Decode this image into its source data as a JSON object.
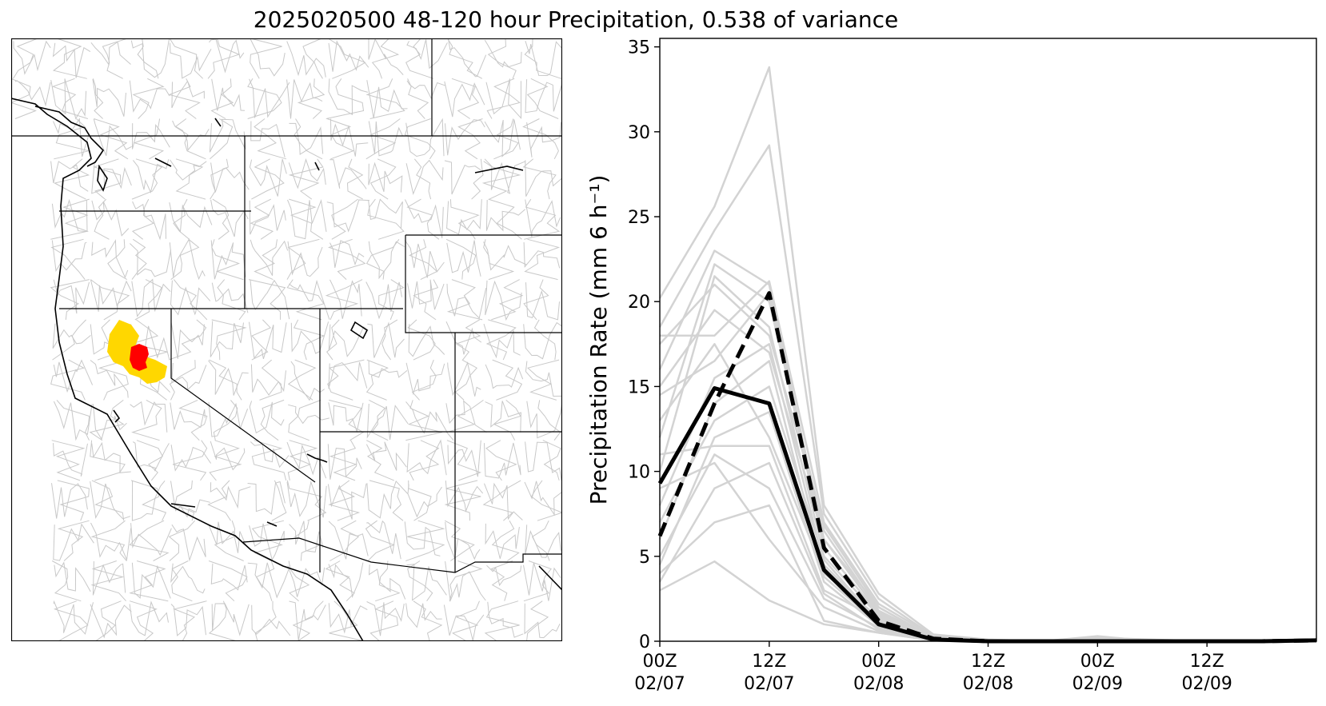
{
  "title": "2025020500 48-120 hour Precipitation, 0.538 of variance",
  "map_panel": {
    "description_colors": {
      "basin_lines": "#c8c8c8",
      "borders": "#000000",
      "highlight_primary": "#ff0000",
      "highlight_secondary": "#ffd700"
    }
  },
  "chart_data": {
    "type": "line",
    "title": "",
    "xlabel": "",
    "ylabel": "Precipitation Rate (mm 6 h⁻¹)",
    "ylim": [
      0,
      35.5
    ],
    "xlim": [
      0,
      72
    ],
    "yticks": [
      0,
      5,
      10,
      15,
      20,
      25,
      30,
      35
    ],
    "xticks": [
      {
        "x": 0,
        "label1": "00Z",
        "label2": "02/07"
      },
      {
        "x": 12,
        "label1": "12Z",
        "label2": "02/07"
      },
      {
        "x": 24,
        "label1": "00Z",
        "label2": "02/08"
      },
      {
        "x": 36,
        "label1": "12Z",
        "label2": "02/08"
      },
      {
        "x": 48,
        "label1": "00Z",
        "label2": "02/09"
      },
      {
        "x": 60,
        "label1": "12Z",
        "label2": "02/09"
      }
    ],
    "x": [
      0,
      6,
      12,
      18,
      24,
      30,
      36,
      42,
      48,
      54,
      60,
      66,
      72
    ],
    "series": [
      {
        "style": "solid-black",
        "color": "#000000",
        "values": [
          9.3,
          14.9,
          14.0,
          4.2,
          1.0,
          0.1,
          0.0,
          0.0,
          0.0,
          0.0,
          0.0,
          0.0,
          0.05
        ]
      },
      {
        "style": "dashed-black",
        "color": "#000000",
        "values": [
          6.2,
          14.0,
          20.5,
          5.5,
          1.2,
          0.15,
          0.0,
          0.0,
          0.0,
          0.0,
          0.0,
          0.0,
          0.05
        ]
      },
      {
        "style": "ensemble",
        "color": "#d3d3d3",
        "values": [
          20.2,
          25.6,
          33.8,
          8.0,
          2.8,
          0.4,
          0.1,
          0.0,
          0.2,
          0.1,
          0.0,
          0.0,
          0.05
        ]
      },
      {
        "style": "ensemble",
        "color": "#d3d3d3",
        "values": [
          18.5,
          24.2,
          29.2,
          7.5,
          2.5,
          0.3,
          0.05,
          0.0,
          0.3,
          0.0,
          0.0,
          0.0,
          0.05
        ]
      },
      {
        "style": "ensemble",
        "color": "#d3d3d3",
        "values": [
          16.0,
          23.0,
          21.0,
          6.0,
          2.0,
          0.2,
          0.0,
          0.0,
          0.1,
          0.0,
          0.0,
          0.0,
          0.05
        ]
      },
      {
        "style": "ensemble",
        "color": "#d3d3d3",
        "values": [
          12.0,
          22.2,
          20.0,
          6.5,
          1.8,
          0.2,
          0.0,
          0.0,
          0.0,
          0.0,
          0.0,
          0.0,
          0.05
        ]
      },
      {
        "style": "ensemble",
        "color": "#d3d3d3",
        "values": [
          10.0,
          21.5,
          18.5,
          5.0,
          1.5,
          0.2,
          0.0,
          0.0,
          0.0,
          0.0,
          0.0,
          0.0,
          0.05
        ]
      },
      {
        "style": "ensemble",
        "color": "#d3d3d3",
        "values": [
          18.0,
          18.0,
          21.2,
          7.0,
          2.2,
          0.3,
          0.05,
          0.0,
          0.1,
          0.0,
          0.0,
          0.0,
          0.05
        ]
      },
      {
        "style": "ensemble",
        "color": "#d3d3d3",
        "values": [
          14.5,
          16.5,
          20.5,
          5.5,
          1.6,
          0.1,
          0.0,
          0.0,
          0.0,
          0.0,
          0.0,
          0.0,
          0.05
        ]
      },
      {
        "style": "ensemble",
        "color": "#d3d3d3",
        "values": [
          8.0,
          15.5,
          17.5,
          4.5,
          1.2,
          0.1,
          0.0,
          0.0,
          0.0,
          0.0,
          0.0,
          0.0,
          0.05
        ]
      },
      {
        "style": "ensemble",
        "color": "#d3d3d3",
        "values": [
          6.0,
          14.0,
          16.5,
          3.8,
          1.0,
          0.1,
          0.0,
          0.0,
          0.0,
          0.0,
          0.0,
          0.0,
          0.05
        ]
      },
      {
        "style": "ensemble",
        "color": "#d3d3d3",
        "values": [
          4.5,
          12.0,
          13.5,
          3.5,
          0.9,
          0.1,
          0.0,
          0.0,
          0.0,
          0.0,
          0.0,
          0.0,
          0.05
        ]
      },
      {
        "style": "ensemble",
        "color": "#d3d3d3",
        "values": [
          11.0,
          11.5,
          11.5,
          3.0,
          1.3,
          0.1,
          0.0,
          0.0,
          0.0,
          0.0,
          0.0,
          0.0,
          0.05
        ]
      },
      {
        "style": "ensemble",
        "color": "#d3d3d3",
        "values": [
          5.0,
          11.0,
          9.0,
          2.5,
          0.8,
          0.05,
          0.0,
          0.0,
          0.0,
          0.0,
          0.0,
          0.0,
          0.05
        ]
      },
      {
        "style": "ensemble",
        "color": "#d3d3d3",
        "values": [
          4.0,
          7.0,
          8.0,
          1.2,
          0.5,
          0.05,
          0.0,
          0.0,
          0.0,
          0.0,
          0.0,
          0.0,
          0.05
        ]
      },
      {
        "style": "ensemble",
        "color": "#d3d3d3",
        "values": [
          3.0,
          4.7,
          2.4,
          1.0,
          0.5,
          0.05,
          0.0,
          0.0,
          0.0,
          0.0,
          0.0,
          0.0,
          0.05
        ]
      },
      {
        "style": "ensemble",
        "color": "#d3d3d3",
        "values": [
          9.0,
          10.5,
          6.0,
          2.0,
          0.6,
          0.05,
          0.0,
          0.0,
          0.0,
          0.0,
          0.0,
          0.0,
          0.05
        ]
      },
      {
        "style": "ensemble",
        "color": "#d3d3d3",
        "values": [
          13.0,
          17.5,
          12.0,
          4.0,
          1.4,
          0.1,
          0.0,
          0.0,
          0.0,
          0.0,
          0.0,
          0.0,
          0.05
        ]
      },
      {
        "style": "ensemble",
        "color": "#d3d3d3",
        "values": [
          7.0,
          13.0,
          15.0,
          4.8,
          1.1,
          0.1,
          0.0,
          0.0,
          0.0,
          0.0,
          0.0,
          0.0,
          0.05
        ]
      },
      {
        "style": "ensemble",
        "color": "#d3d3d3",
        "values": [
          15.0,
          19.5,
          17.0,
          6.0,
          1.7,
          0.2,
          0.0,
          0.0,
          0.0,
          0.0,
          0.0,
          0.0,
          0.05
        ]
      },
      {
        "style": "ensemble",
        "color": "#d3d3d3",
        "values": [
          3.5,
          9.0,
          10.5,
          2.8,
          0.7,
          0.05,
          0.0,
          0.0,
          0.0,
          0.0,
          0.0,
          0.0,
          0.05
        ]
      },
      {
        "style": "ensemble",
        "color": "#d3d3d3",
        "values": [
          17.5,
          21.0,
          18.0,
          6.8,
          2.0,
          0.2,
          0.0,
          0.0,
          0.0,
          0.0,
          0.0,
          0.0,
          0.05
        ]
      }
    ],
    "grid": false,
    "legend": "none"
  }
}
